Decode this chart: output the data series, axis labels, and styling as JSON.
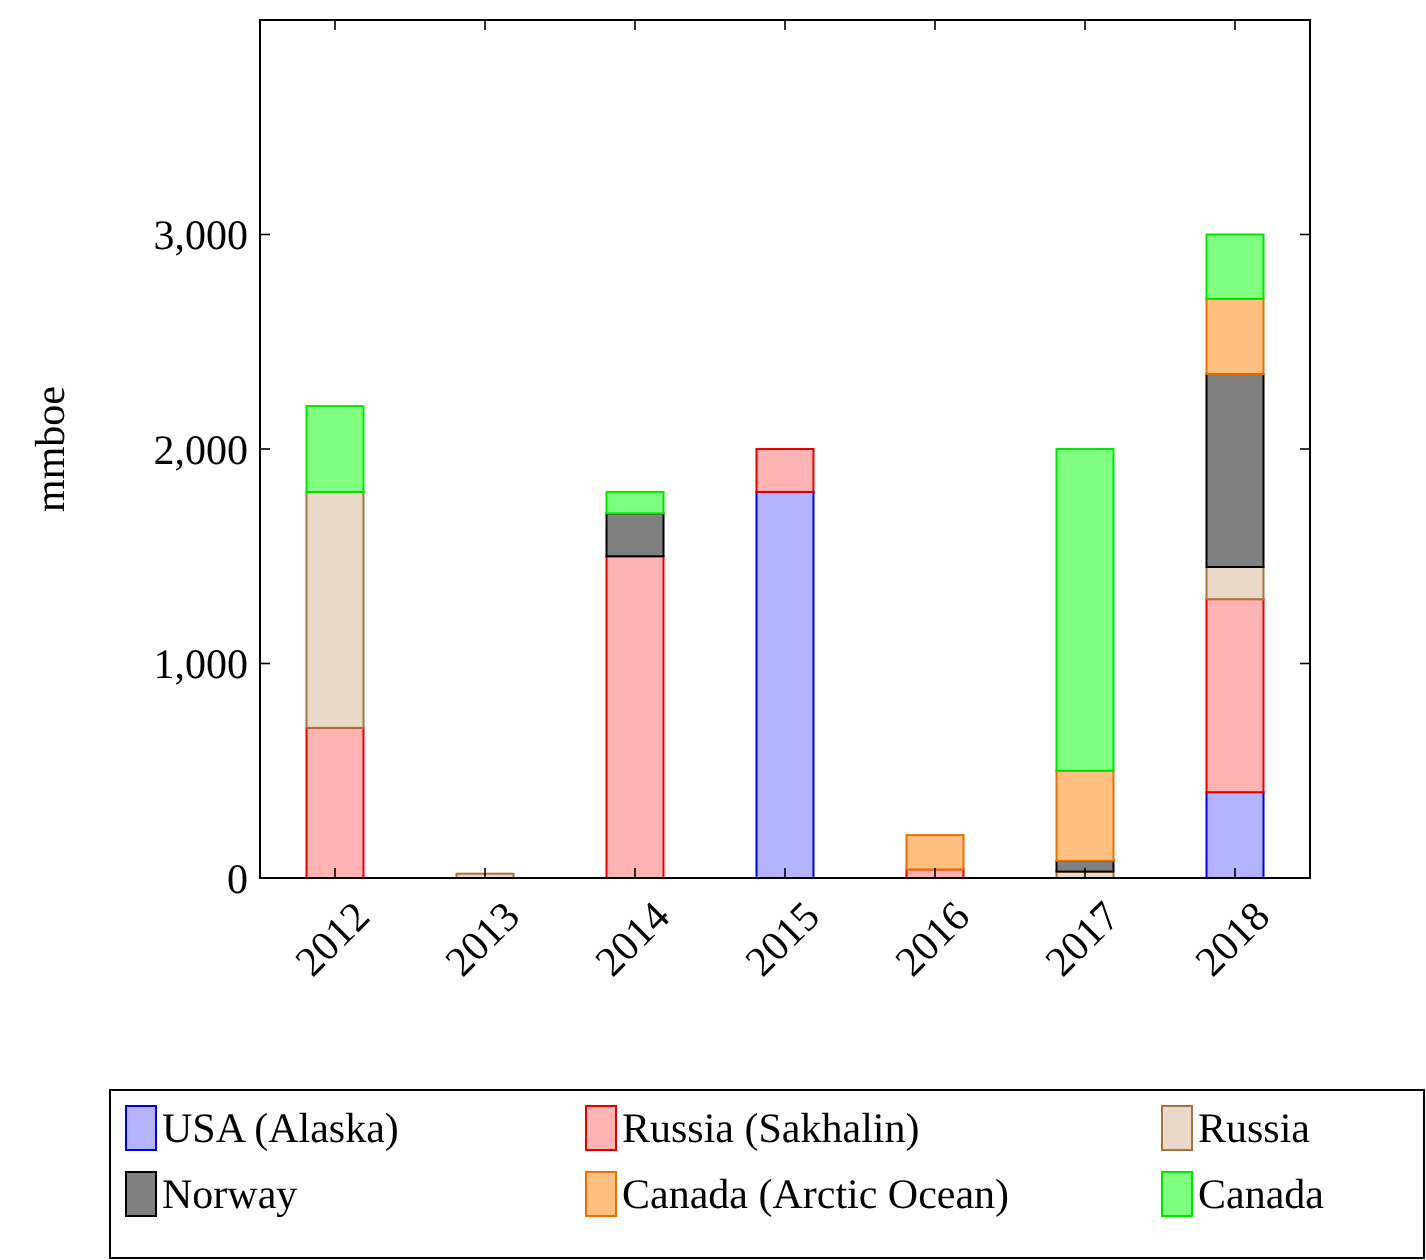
{
  "chart_data": {
    "type": "bar",
    "stacked": true,
    "ylabel": "mmboe",
    "categories": [
      "2012",
      "2013",
      "2014",
      "2015",
      "2016",
      "2017",
      "2018"
    ],
    "ylim": [
      0,
      4000
    ],
    "yticks": [
      0,
      {
        "value": 1000,
        "label": "1,000"
      },
      {
        "value": 2000,
        "label": "2,000"
      },
      {
        "value": 3000,
        "label": "3,000"
      }
    ],
    "legend": "bottom",
    "grid": false,
    "series": [
      {
        "name": "USA (Alaska)",
        "color": "#b3b3ff",
        "values": [
          0,
          0,
          0,
          1800,
          0,
          0,
          400
        ]
      },
      {
        "name": "Russia (Sakhalin)",
        "color": "#ffb3b3",
        "values": [
          700,
          0,
          1500,
          200,
          40,
          0,
          900
        ]
      },
      {
        "name": "Russia",
        "color": "#ead9c7",
        "values": [
          1100,
          20,
          0,
          0,
          0,
          30,
          150
        ]
      },
      {
        "name": "Norway",
        "color": "#808080",
        "values": [
          0,
          0,
          200,
          0,
          0,
          50,
          900
        ]
      },
      {
        "name": "Canada (Arctic Ocean)",
        "color": "#ffbf80",
        "values": [
          0,
          0,
          0,
          0,
          160,
          420,
          350
        ]
      },
      {
        "name": "Canada",
        "color": "#80ff80",
        "values": [
          400,
          0,
          100,
          0,
          0,
          1500,
          300
        ]
      }
    ]
  }
}
